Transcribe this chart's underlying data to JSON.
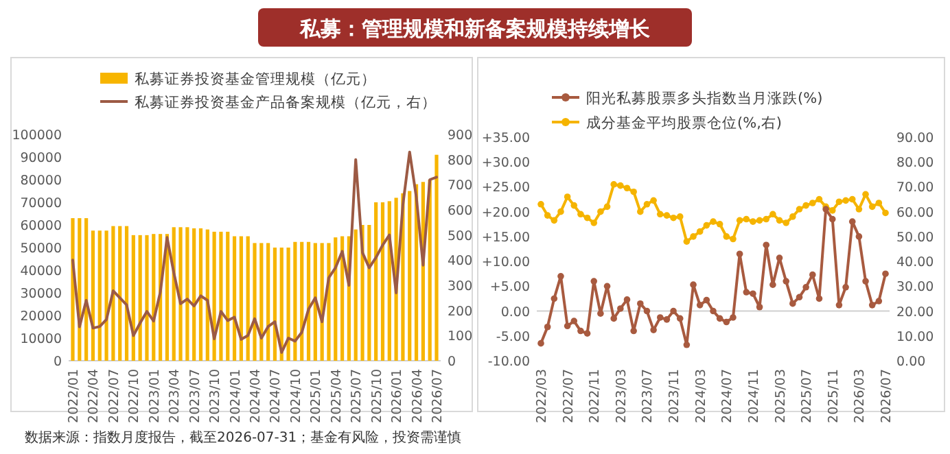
{
  "chart_data": [
    {
      "type": "bar",
      "title": "私募：管理规模和新备案规模持续增长",
      "annotations": [
        "数据来源：指数月度报告，截至2026-07-31；基金有风险，投资需谨慎"
      ],
      "categories": [
        "2022/01",
        null,
        null,
        "2022/04",
        null,
        null,
        "2022/07",
        null,
        null,
        "2022/10",
        null,
        null,
        "2023/01",
        null,
        null,
        "2023/04",
        null,
        null,
        "2023/07",
        null,
        null,
        "2023/10",
        null,
        null,
        "2024/01",
        null,
        null,
        "2024/04",
        null,
        null,
        "2024/07",
        null,
        null,
        "2024/10",
        null,
        null,
        "2025/01",
        null,
        null,
        "2025/04",
        null,
        null,
        "2025/07",
        null,
        null,
        "2025/10",
        null,
        null,
        "2026/01",
        null,
        null,
        "2026/04",
        null,
        null,
        "2026/07"
      ],
      "series": [
        {
          "name": "私募证券投资基金管理规模（亿元）",
          "color": "#f7b500",
          "values": [
            63000,
            63000,
            63000,
            57500,
            57500,
            57500,
            59500,
            59500,
            59500,
            55500,
            55500,
            55500,
            56000,
            56000,
            56000,
            59000,
            59000,
            59000,
            58500,
            58500,
            58000,
            57000,
            57000,
            57000,
            55000,
            55000,
            55000,
            52000,
            52000,
            52000,
            50000,
            50000,
            50000,
            52500,
            52500,
            52500,
            52000,
            52000,
            52000,
            54500,
            55000,
            55000,
            58000,
            60000,
            60000,
            70000,
            70000,
            70500,
            72000,
            74000,
            75000,
            78000,
            79000,
            80000,
            91000
          ]
        },
        {
          "name": "私募证券投资基金产品备案规模（亿元，右）",
          "type": "line",
          "axis": "y2",
          "color": "#9c5a44",
          "values": [
            400,
            135,
            240,
            130,
            136,
            164,
            278,
            250,
            222,
            100,
            150,
            196,
            158,
            273,
            490,
            350,
            227,
            245,
            218,
            258,
            240,
            87,
            196,
            160,
            173,
            85,
            100,
            167,
            90,
            136,
            155,
            33,
            90,
            78,
            113,
            205,
            250,
            155,
            330,
            370,
            435,
            300,
            800,
            430,
            370,
            410,
            460,
            500,
            270,
            620,
            830,
            650,
            380,
            720,
            730
          ]
        }
      ],
      "ylim": [
        0,
        100000
      ],
      "yticks": [
        0,
        10000,
        20000,
        30000,
        40000,
        50000,
        60000,
        70000,
        80000,
        90000,
        100000
      ],
      "y2lim": [
        0,
        900
      ],
      "y2ticks": [
        0,
        100,
        200,
        300,
        400,
        500,
        600,
        700,
        800,
        900
      ],
      "legend": "top"
    },
    {
      "type": "line",
      "marker": "circle",
      "categories": [
        "2022/03",
        null,
        null,
        null,
        "2022/07",
        null,
        null,
        null,
        "2022/11",
        null,
        null,
        null,
        "2023/03",
        null,
        null,
        null,
        "2023/07",
        null,
        null,
        null,
        "2023/11",
        null,
        null,
        null,
        "2024/03",
        null,
        null,
        null,
        "2024/07",
        null,
        null,
        null,
        "2024/11",
        null,
        null,
        null,
        "2025/03",
        null,
        null,
        null,
        "2025/07",
        null,
        null,
        null,
        "2025/11",
        null,
        null,
        null,
        "2026/03",
        null,
        null,
        null,
        "2026/07"
      ],
      "series": [
        {
          "name": "阳光私募股票多头指数当月涨跌(%)",
          "color": "#a85a3f",
          "values": [
            -6.5,
            -3.2,
            2.5,
            7.0,
            -3.0,
            -2.0,
            -4.0,
            -4.5,
            6.0,
            -0.5,
            5.0,
            -1.5,
            0.5,
            2.3,
            -4.0,
            1.5,
            0.0,
            -3.8,
            -1.3,
            -1.7,
            0.0,
            -1.5,
            -6.8,
            5.3,
            1.2,
            2.2,
            0.0,
            -1.5,
            -2.2,
            -1.3,
            11.5,
            3.8,
            3.5,
            0.8,
            13.3,
            5.3,
            10.7,
            6.0,
            1.5,
            2.8,
            4.8,
            7.3,
            2.5,
            20.5,
            18.5,
            1.2,
            4.8,
            18.0,
            15.0,
            6.0,
            1.2,
            2.0,
            7.5
          ]
        },
        {
          "name": "成分基金平均股票仓位(%,右)",
          "color": "#f5b400",
          "axis": "y2",
          "values": [
            63,
            58.5,
            56.5,
            60,
            66,
            62.5,
            59,
            57.5,
            55.5,
            60,
            62,
            71,
            70.5,
            69.5,
            68,
            60,
            63,
            64.5,
            59,
            58.5,
            57.5,
            58,
            48,
            50,
            52,
            54.5,
            56,
            55,
            50,
            49,
            56.5,
            57,
            56,
            56.5,
            57,
            59,
            56.5,
            55.5,
            58,
            61,
            62.5,
            63.5,
            65,
            62,
            60.5,
            64,
            64.5,
            65,
            61,
            67,
            62,
            63.5,
            59.5
          ]
        }
      ],
      "ylim": [
        -10,
        35
      ],
      "yticks": [
        {
          "value": -10,
          "label": "-10.00"
        },
        {
          "value": -5,
          "label": "-5.00"
        },
        {
          "value": 0,
          "label": "0.00"
        },
        {
          "value": 5,
          "label": "+5.00"
        },
        {
          "value": 10,
          "label": "+10.00"
        },
        {
          "value": 15,
          "label": "+15.00"
        },
        {
          "value": 20,
          "label": "+20.00"
        },
        {
          "value": 25,
          "label": "+25.00"
        },
        {
          "value": 30,
          "label": "+30.00"
        },
        {
          "value": 35,
          "label": "+35.00"
        }
      ],
      "y2lim": [
        0,
        90
      ],
      "y2ticks": [
        {
          "value": 0,
          "label": "0.00"
        },
        {
          "value": 10,
          "label": "10.00"
        },
        {
          "value": 20,
          "label": "20.00"
        },
        {
          "value": 30,
          "label": "30.00"
        },
        {
          "value": 40,
          "label": "40.00"
        },
        {
          "value": 50,
          "label": "50.00"
        },
        {
          "value": 60,
          "label": "60.00"
        },
        {
          "value": 70,
          "label": "70.00"
        },
        {
          "value": 80,
          "label": "80.00"
        },
        {
          "value": 90,
          "label": "90.00"
        }
      ],
      "legend": "top"
    }
  ]
}
